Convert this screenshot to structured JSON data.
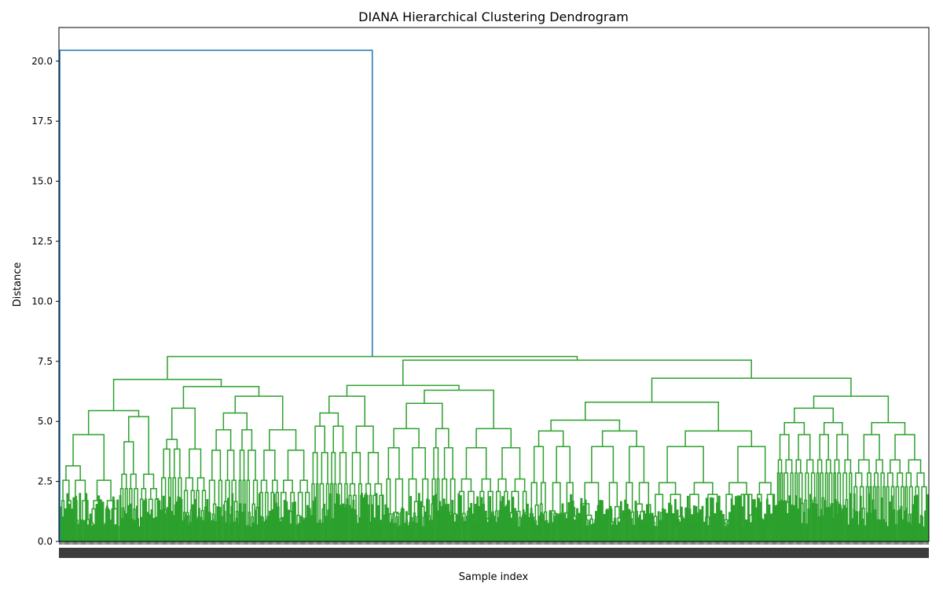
{
  "chart_data": {
    "type": "dendrogram",
    "title": "DIANA Hierarchical Clustering Dendrogram",
    "xlabel": "Sample index",
    "ylabel": "Distance",
    "ylim": [
      0,
      21.4
    ],
    "yticks": [
      "0.0",
      "2.5",
      "5.0",
      "7.5",
      "10.0",
      "12.5",
      "15.0",
      "17.5",
      "20.0"
    ],
    "ytick_values": [
      0,
      2.5,
      5,
      7.5,
      10,
      12.5,
      15,
      17.5,
      20
    ],
    "grid": false,
    "legend": "none",
    "colors": {
      "root_link": "#1f77b4",
      "cluster_links": "#2ca02c",
      "axes": "#000000"
    },
    "leaf_count": 1000,
    "x_range": [
      0,
      1000
    ],
    "merges": [
      {
        "id": "root",
        "height": 20.45,
        "left": "leaf-0",
        "right": "A",
        "color": "root_link"
      },
      {
        "id": "A",
        "height": 7.7,
        "left": "B",
        "right": "C"
      },
      {
        "id": "B",
        "height": 6.75,
        "left": "D",
        "right": "E"
      },
      {
        "id": "C",
        "height": 7.55,
        "left": "F",
        "right": "G"
      },
      {
        "id": "D",
        "height": 5.45,
        "left": "H",
        "right": "I"
      },
      {
        "id": "E",
        "height": 6.45,
        "left": "J",
        "right": "K"
      },
      {
        "id": "F",
        "height": 6.5,
        "left": "L",
        "right": "M"
      },
      {
        "id": "G",
        "height": 6.8,
        "left": "N",
        "right": "O"
      },
      {
        "id": "H",
        "height": 4.45,
        "span": [
          2,
          70
        ],
        "sub": [
          3.15,
          2.55,
          1.7
        ]
      },
      {
        "id": "I",
        "height": 5.2,
        "span": [
          70,
          115
        ],
        "sub": [
          4.15,
          2.8,
          2.2
        ]
      },
      {
        "id": "J",
        "height": 5.55,
        "span": [
          115,
          170
        ],
        "sub": [
          4.25,
          3.85,
          2.65
        ]
      },
      {
        "id": "K",
        "height": 6.05,
        "span": [
          170,
          290
        ],
        "sub": [
          5.35,
          4.65,
          3.8,
          2.55
        ]
      },
      {
        "id": "L",
        "height": 6.05,
        "span": [
          290,
          375
        ],
        "sub": [
          5.35,
          4.8,
          3.7,
          2.4
        ]
      },
      {
        "id": "M",
        "height": 6.3,
        "span": [
          375,
          540
        ],
        "sub": [
          5.75,
          4.7,
          3.9,
          2.6
        ]
      },
      {
        "id": "N",
        "height": 5.8,
        "span": [
          540,
          825
        ],
        "sub": [
          5.05,
          4.6,
          3.95,
          2.45
        ]
      },
      {
        "id": "O",
        "height": 6.05,
        "span": [
          825,
          1000
        ],
        "sub": [
          5.55,
          4.95,
          4.45,
          3.4,
          2.85
        ]
      }
    ]
  }
}
